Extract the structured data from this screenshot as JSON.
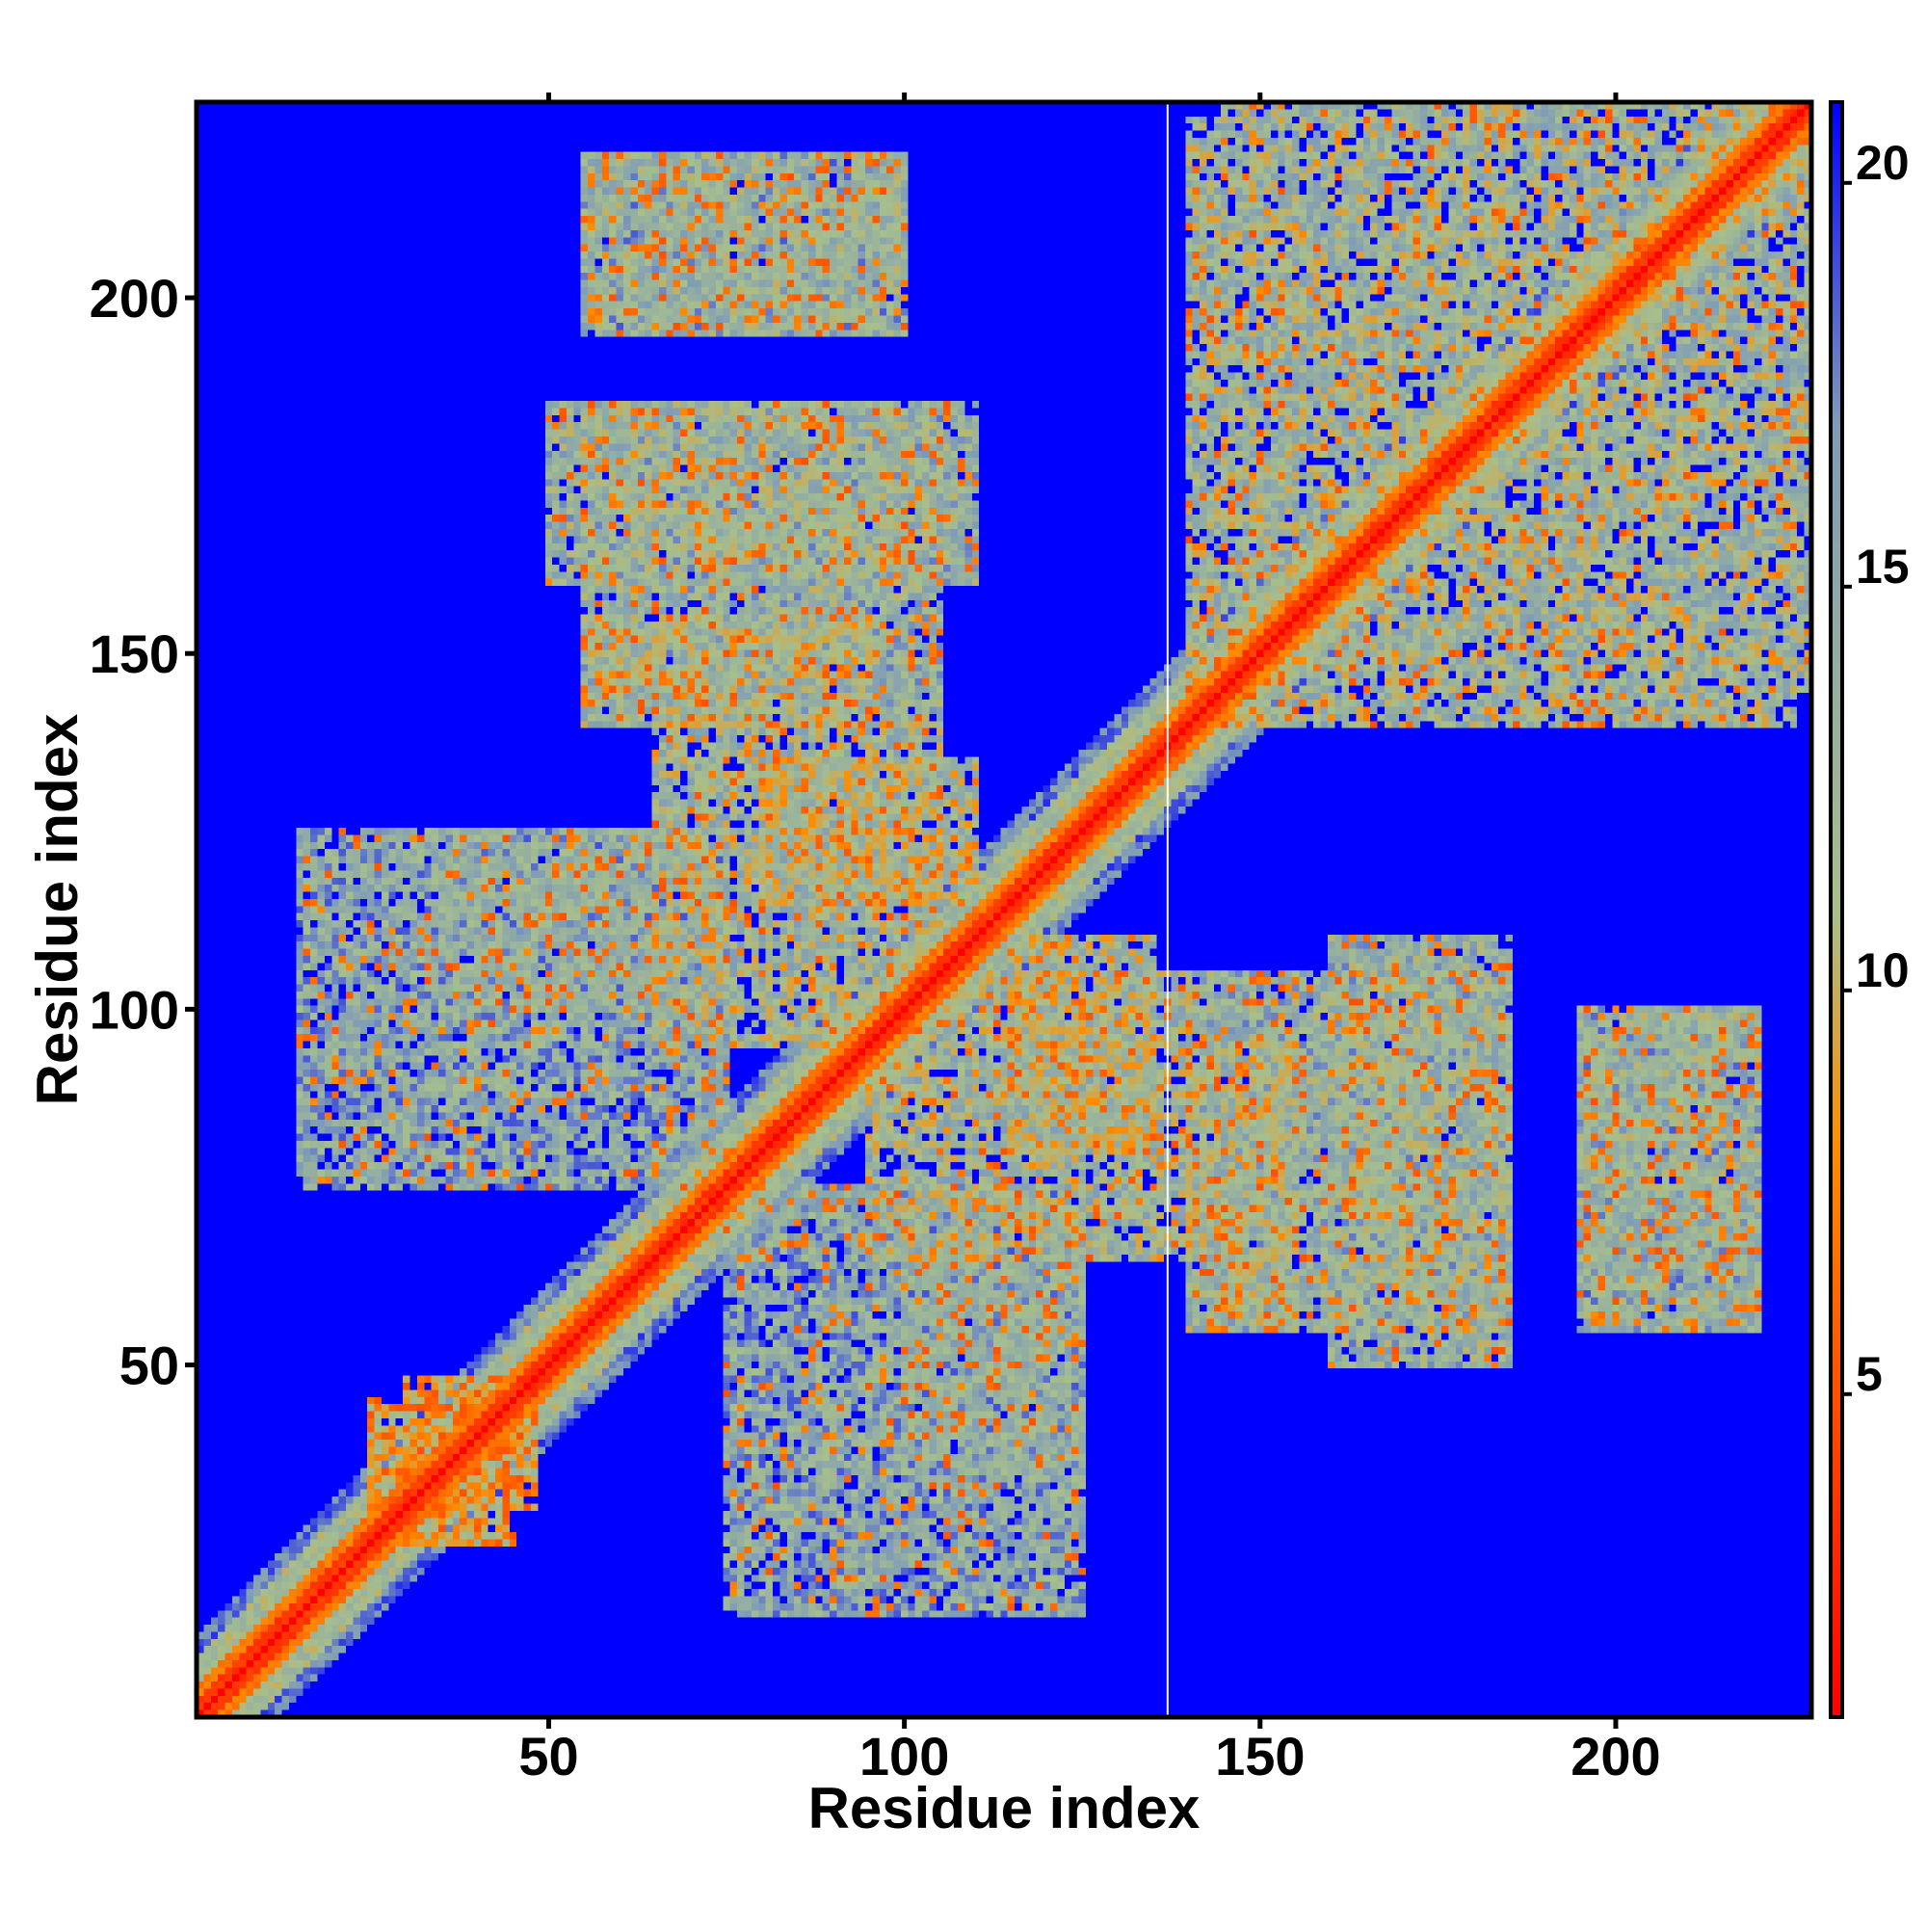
{
  "chart_data": {
    "type": "heatmap",
    "title": "",
    "xlabel": "Residue index",
    "ylabel": "Residue index",
    "xlim": [
      1,
      227
    ],
    "ylim": [
      1,
      227
    ],
    "x_ticks": [
      50,
      100,
      150,
      200
    ],
    "y_ticks": [
      50,
      100,
      150,
      200
    ],
    "colorbar": {
      "range": [
        1,
        21
      ],
      "ticks": [
        5,
        10,
        15,
        20
      ],
      "colors": [
        "#ff0000",
        "#ff8c00",
        "#a8bf8c",
        "#7f9cb8",
        "#0000ff"
      ],
      "stops": [
        0.0,
        0.35,
        0.5,
        0.8,
        1.0
      ]
    },
    "matrix_size": 227,
    "missing_residue_line": 137,
    "structure": {
      "diagonal": "distance ~1-6 along main diagonal (red/orange band), rising to ~12-15 within 5-10 residues",
      "background": "distance > 20 (blue) for most residue pairs",
      "contact_regions": [
        {
          "x": [
            30,
            45
          ],
          "y": [
            25,
            48
          ],
          "value": 8
        },
        {
          "x": [
            55,
            100
          ],
          "y": [
            195,
            220
          ],
          "value": 13
        },
        {
          "x": [
            50,
            110
          ],
          "y": [
            160,
            185
          ],
          "value": 13
        },
        {
          "x": [
            55,
            95
          ],
          "y": [
            140,
            155
          ],
          "value": 12
        },
        {
          "x": [
            80,
            110
          ],
          "y": [
            115,
            135
          ],
          "value": 11
        },
        {
          "x": [
            15,
            75
          ],
          "y": [
            75,
            125
          ],
          "value": 14
        },
        {
          "x": [
            95,
            140
          ],
          "y": [
            65,
            105
          ],
          "value": 12
        },
        {
          "x": [
            140,
            230
          ],
          "y": [
            145,
            225
          ],
          "value": 12
        },
        {
          "x": [
            140,
            185
          ],
          "y": [
            55,
            105
          ],
          "value": 13
        },
        {
          "x": [
            195,
            220
          ],
          "y": [
            55,
            100
          ],
          "value": 14
        },
        {
          "x": [
            100,
            125
          ],
          "y": [
            35,
            65
          ],
          "value": 14
        }
      ]
    }
  }
}
